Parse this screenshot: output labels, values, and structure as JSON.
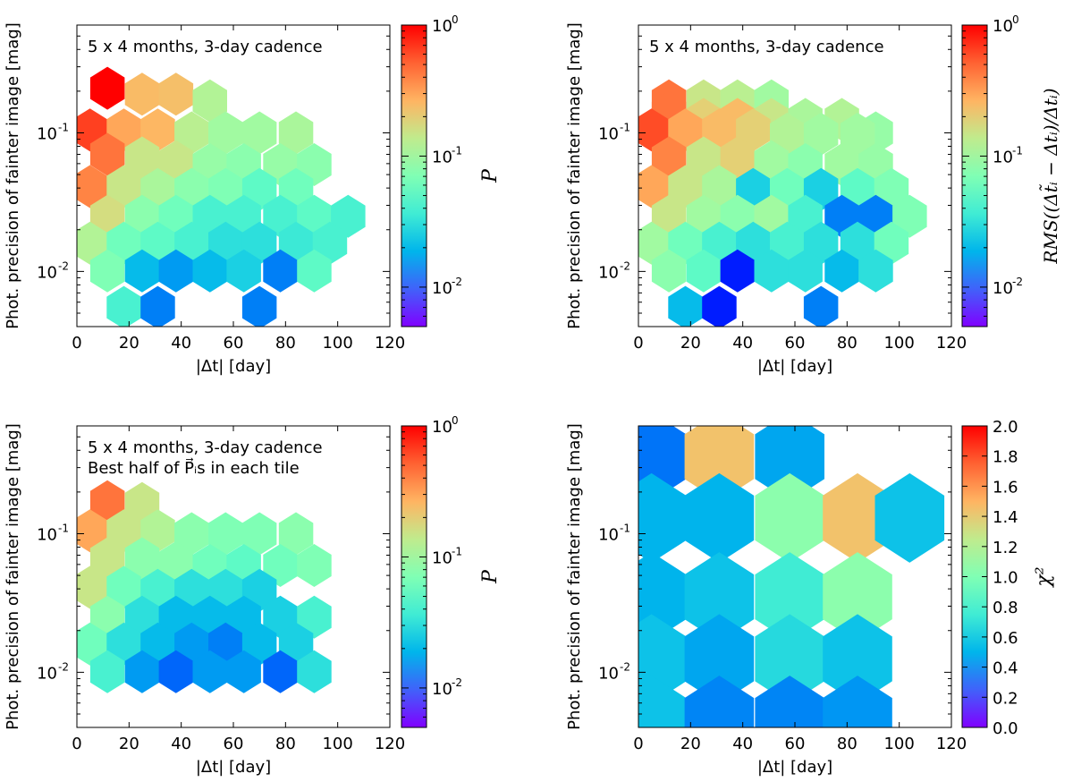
{
  "chart_data": [
    {
      "type": "hexbin",
      "annotation": [
        "5 x 4 months, 3-day cadence"
      ],
      "xlabel": "|Δt| [day]",
      "ylabel": "Phot. precision of fainter image [mag]",
      "xlim": [
        0,
        120
      ],
      "ylim": [
        0.004,
        0.6
      ],
      "yscale": "log",
      "xticks": [
        0,
        20,
        40,
        60,
        80,
        100,
        120
      ],
      "yticks": [
        {
          "value": 0.1,
          "label": "10",
          "exp": "-1"
        },
        {
          "value": 0.01,
          "label": "10",
          "exp": "-2"
        }
      ],
      "colorbar": {
        "label": "P",
        "scale": "log",
        "range": [
          0.005,
          1
        ],
        "ticks": [
          {
            "value": 1,
            "label": "10",
            "exp": "0"
          },
          {
            "value": 0.1,
            "label": "10",
            "exp": "-1"
          },
          {
            "value": 0.01,
            "label": "10",
            "exp": "-2"
          }
        ]
      },
      "cells": [
        [
          11.7,
          0.21,
          1.0
        ],
        [
          25,
          0.19,
          0.25
        ],
        [
          38,
          0.19,
          0.24
        ],
        [
          51,
          0.17,
          0.12
        ],
        [
          5,
          0.105,
          0.65
        ],
        [
          18,
          0.105,
          0.3
        ],
        [
          31,
          0.105,
          0.26
        ],
        [
          44,
          0.1,
          0.13
        ],
        [
          57,
          0.1,
          0.1
        ],
        [
          70,
          0.1,
          0.1
        ],
        [
          84,
          0.1,
          0.11
        ],
        [
          11.7,
          0.07,
          0.45
        ],
        [
          25,
          0.066,
          0.15
        ],
        [
          38,
          0.062,
          0.15
        ],
        [
          51,
          0.059,
          0.09
        ],
        [
          64,
          0.059,
          0.08
        ],
        [
          78,
          0.059,
          0.09
        ],
        [
          91,
          0.059,
          0.08
        ],
        [
          5,
          0.041,
          0.4
        ],
        [
          18,
          0.041,
          0.15
        ],
        [
          31,
          0.039,
          0.11
        ],
        [
          44,
          0.039,
          0.08
        ],
        [
          57,
          0.039,
          0.07
        ],
        [
          70,
          0.039,
          0.05
        ],
        [
          84,
          0.039,
          0.06
        ],
        [
          11.7,
          0.025,
          0.17
        ],
        [
          25,
          0.025,
          0.08
        ],
        [
          38,
          0.025,
          0.06
        ],
        [
          51,
          0.025,
          0.04
        ],
        [
          64,
          0.025,
          0.04
        ],
        [
          78,
          0.025,
          0.04
        ],
        [
          91,
          0.025,
          0.05
        ],
        [
          104,
          0.025,
          0.04
        ],
        [
          5,
          0.016,
          0.12
        ],
        [
          18,
          0.016,
          0.06
        ],
        [
          31,
          0.016,
          0.05
        ],
        [
          44,
          0.016,
          0.04
        ],
        [
          57,
          0.016,
          0.03
        ],
        [
          70,
          0.016,
          0.03
        ],
        [
          84,
          0.016,
          0.035
        ],
        [
          97,
          0.016,
          0.04
        ],
        [
          11.7,
          0.0101,
          0.07
        ],
        [
          25,
          0.0101,
          0.02
        ],
        [
          38,
          0.0101,
          0.015
        ],
        [
          51,
          0.0101,
          0.02
        ],
        [
          64,
          0.0101,
          0.025
        ],
        [
          78,
          0.0101,
          0.012
        ],
        [
          91,
          0.0101,
          0.05
        ],
        [
          18,
          0.0055,
          0.04
        ],
        [
          31,
          0.0055,
          0.012
        ],
        [
          70,
          0.0055,
          0.012
        ]
      ]
    },
    {
      "type": "hexbin",
      "annotation": [
        "5 x 4 months, 3-day cadence"
      ],
      "xlabel": "|Δt| [day]",
      "ylabel": "Phot. precision of fainter image [mag]",
      "xlim": [
        0,
        120
      ],
      "ylim": [
        0.004,
        0.6
      ],
      "yscale": "log",
      "xticks": [
        0,
        20,
        40,
        60,
        80,
        100,
        120
      ],
      "yticks": [
        {
          "value": 0.1,
          "label": "10",
          "exp": "-1"
        },
        {
          "value": 0.01,
          "label": "10",
          "exp": "-2"
        }
      ],
      "colorbar": {
        "label": "RMS((Δt̃ᵢ − Δtᵢ)/Δtᵢ)",
        "scale": "log",
        "range": [
          0.005,
          1
        ],
        "ticks": [
          {
            "value": 1,
            "label": "10",
            "exp": "0"
          },
          {
            "value": 0.1,
            "label": "10",
            "exp": "-1"
          },
          {
            "value": 0.01,
            "label": "10",
            "exp": "-2"
          }
        ]
      },
      "cells": [
        [
          11.7,
          0.17,
          0.45
        ],
        [
          25,
          0.17,
          0.15
        ],
        [
          38,
          0.17,
          0.13
        ],
        [
          51,
          0.17,
          0.1
        ],
        [
          11.7,
          0.14,
          0.45
        ],
        [
          25,
          0.125,
          0.2
        ],
        [
          38,
          0.125,
          0.25
        ],
        [
          51,
          0.125,
          0.15
        ],
        [
          64,
          0.125,
          0.11
        ],
        [
          78,
          0.125,
          0.12
        ],
        [
          91,
          0.1,
          0.09
        ],
        [
          5,
          0.105,
          0.6
        ],
        [
          18,
          0.105,
          0.3
        ],
        [
          31,
          0.105,
          0.25
        ],
        [
          44,
          0.105,
          0.2
        ],
        [
          57,
          0.098,
          0.12
        ],
        [
          70,
          0.098,
          0.1
        ],
        [
          84,
          0.098,
          0.1
        ],
        [
          11.7,
          0.066,
          0.4
        ],
        [
          25,
          0.066,
          0.15
        ],
        [
          38,
          0.066,
          0.2
        ],
        [
          51,
          0.062,
          0.1
        ],
        [
          64,
          0.059,
          0.08
        ],
        [
          78,
          0.059,
          0.1
        ],
        [
          91,
          0.059,
          0.09
        ],
        [
          5,
          0.041,
          0.3
        ],
        [
          18,
          0.041,
          0.15
        ],
        [
          31,
          0.041,
          0.11
        ],
        [
          44,
          0.039,
          0.025
        ],
        [
          57,
          0.039,
          0.06
        ],
        [
          70,
          0.039,
          0.025
        ],
        [
          84,
          0.039,
          0.05
        ],
        [
          97,
          0.039,
          0.07
        ],
        [
          11.7,
          0.025,
          0.15
        ],
        [
          25,
          0.025,
          0.1
        ],
        [
          38,
          0.025,
          0.08
        ],
        [
          51,
          0.025,
          0.1
        ],
        [
          64,
          0.025,
          0.04
        ],
        [
          78,
          0.025,
          0.012
        ],
        [
          91,
          0.025,
          0.012
        ],
        [
          104,
          0.025,
          0.07
        ],
        [
          5,
          0.016,
          0.1
        ],
        [
          18,
          0.016,
          0.06
        ],
        [
          31,
          0.016,
          0.04
        ],
        [
          44,
          0.016,
          0.03
        ],
        [
          57,
          0.016,
          0.04
        ],
        [
          70,
          0.016,
          0.03
        ],
        [
          84,
          0.016,
          0.03
        ],
        [
          97,
          0.016,
          0.06
        ],
        [
          11.7,
          0.0101,
          0.08
        ],
        [
          25,
          0.0101,
          0.05
        ],
        [
          38,
          0.0101,
          0.006
        ],
        [
          51,
          0.0101,
          0.03
        ],
        [
          64,
          0.0101,
          0.03
        ],
        [
          78,
          0.0101,
          0.02
        ],
        [
          91,
          0.0101,
          0.03
        ],
        [
          18,
          0.0055,
          0.02
        ],
        [
          31,
          0.0055,
          0.006
        ],
        [
          70,
          0.0055,
          0.012
        ]
      ]
    },
    {
      "type": "hexbin",
      "annotation": [
        "5 x 4 months, 3-day cadence",
        "Best half of P⃗ᵢs in each tile"
      ],
      "xlabel": "|Δt| [day]",
      "ylabel": "Phot. precision of fainter image [mag]",
      "xlim": [
        0,
        120
      ],
      "ylim": [
        0.004,
        0.6
      ],
      "yscale": "log",
      "xticks": [
        0,
        20,
        40,
        60,
        80,
        100,
        120
      ],
      "yticks": [
        {
          "value": 0.1,
          "label": "10",
          "exp": "-1"
        },
        {
          "value": 0.01,
          "label": "10",
          "exp": "-2"
        }
      ],
      "colorbar": {
        "label": "P",
        "scale": "log",
        "range": [
          0.005,
          1
        ],
        "ticks": [
          {
            "value": 1,
            "label": "10",
            "exp": "0"
          },
          {
            "value": 0.1,
            "label": "10",
            "exp": "-1"
          },
          {
            "value": 0.01,
            "label": "10",
            "exp": "-2"
          }
        ]
      },
      "cells": [
        [
          11.7,
          0.17,
          0.45
        ],
        [
          25,
          0.165,
          0.15
        ],
        [
          5,
          0.105,
          0.3
        ],
        [
          18,
          0.105,
          0.15
        ],
        [
          31,
          0.105,
          0.12
        ],
        [
          44,
          0.1,
          0.08
        ],
        [
          57,
          0.1,
          0.07
        ],
        [
          70,
          0.1,
          0.07
        ],
        [
          84,
          0.1,
          0.08
        ],
        [
          11.7,
          0.066,
          0.15
        ],
        [
          25,
          0.066,
          0.08
        ],
        [
          38,
          0.062,
          0.08
        ],
        [
          51,
          0.059,
          0.06
        ],
        [
          64,
          0.059,
          0.05
        ],
        [
          78,
          0.059,
          0.06
        ],
        [
          91,
          0.059,
          0.07
        ],
        [
          5,
          0.041,
          0.15
        ],
        [
          18,
          0.041,
          0.06
        ],
        [
          31,
          0.039,
          0.04
        ],
        [
          44,
          0.039,
          0.03
        ],
        [
          57,
          0.039,
          0.03
        ],
        [
          70,
          0.039,
          0.025
        ],
        [
          11.7,
          0.025,
          0.08
        ],
        [
          25,
          0.025,
          0.03
        ],
        [
          38,
          0.025,
          0.02
        ],
        [
          51,
          0.025,
          0.02
        ],
        [
          64,
          0.025,
          0.02
        ],
        [
          78,
          0.025,
          0.025
        ],
        [
          91,
          0.025,
          0.04
        ],
        [
          5,
          0.016,
          0.06
        ],
        [
          18,
          0.016,
          0.03
        ],
        [
          31,
          0.016,
          0.02
        ],
        [
          44,
          0.016,
          0.015
        ],
        [
          57,
          0.016,
          0.012
        ],
        [
          70,
          0.016,
          0.02
        ],
        [
          84,
          0.016,
          0.025
        ],
        [
          11.7,
          0.0101,
          0.04
        ],
        [
          25,
          0.0101,
          0.015
        ],
        [
          38,
          0.0101,
          0.01
        ],
        [
          51,
          0.0101,
          0.015
        ],
        [
          64,
          0.0101,
          0.015
        ],
        [
          78,
          0.0101,
          0.01
        ],
        [
          91,
          0.0101,
          0.03
        ]
      ]
    },
    {
      "type": "hexbin",
      "annotation": [],
      "xlabel": "|Δt| [day]",
      "ylabel": "Phot. precision of fainter image [mag]",
      "xlim": [
        0,
        120
      ],
      "ylim": [
        0.004,
        0.6
      ],
      "yscale": "log",
      "xticks": [
        0,
        20,
        40,
        60,
        80,
        100,
        120
      ],
      "yticks": [
        {
          "value": 0.1,
          "label": "10",
          "exp": "-1"
        },
        {
          "value": 0.01,
          "label": "10",
          "exp": "-2"
        }
      ],
      "colorbar": {
        "label": "χ²",
        "scale": "linear",
        "range": [
          0,
          2
        ],
        "ticks": [
          {
            "value": 2,
            "label": "2.0"
          },
          {
            "value": 1.8,
            "label": "1.8"
          },
          {
            "value": 1.6,
            "label": "1.6"
          },
          {
            "value": 1.4,
            "label": "1.4"
          },
          {
            "value": 1.2,
            "label": "1.2"
          },
          {
            "value": 1,
            "label": "1.0"
          },
          {
            "value": 0.8,
            "label": "0.8"
          },
          {
            "value": 0.6,
            "label": "0.6"
          },
          {
            "value": 0.4,
            "label": "0.4"
          },
          {
            "value": 0.2,
            "label": "0.2"
          },
          {
            "value": 0,
            "label": "0.0"
          }
        ]
      },
      "cells": [
        [
          5,
          0.36,
          0.3
        ],
        [
          31,
          0.36,
          1.45
        ],
        [
          58,
          0.36,
          0.45
        ],
        [
          5,
          0.13,
          0.5
        ],
        [
          31,
          0.13,
          0.5
        ],
        [
          58,
          0.13,
          1.05
        ],
        [
          84,
          0.13,
          1.45
        ],
        [
          104,
          0.13,
          0.55
        ],
        [
          5,
          0.035,
          0.5
        ],
        [
          31,
          0.035,
          0.55
        ],
        [
          58,
          0.035,
          0.75
        ],
        [
          84,
          0.035,
          1.05
        ],
        [
          5,
          0.0125,
          0.55
        ],
        [
          31,
          0.0125,
          0.45
        ],
        [
          58,
          0.0125,
          0.65
        ],
        [
          84,
          0.0125,
          0.55
        ],
        [
          5,
          0.0045,
          0.55
        ],
        [
          31,
          0.0045,
          0.35
        ],
        [
          58,
          0.0045,
          0.35
        ],
        [
          84,
          0.0045,
          0.4
        ]
      ]
    }
  ]
}
